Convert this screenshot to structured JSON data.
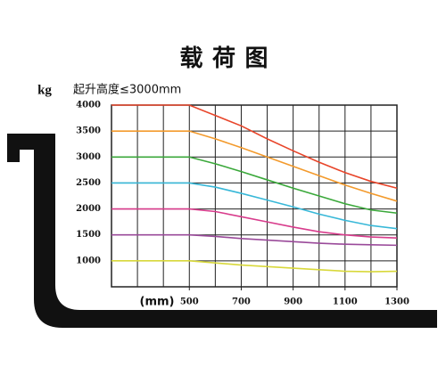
{
  "chart_data": {
    "type": "line",
    "title": "载 荷 图",
    "subtitle": "起升高度≤3000mm",
    "y_label": "kg",
    "x_label": "(mm)",
    "x": [
      200,
      500,
      600,
      700,
      800,
      900,
      1000,
      1100,
      1200,
      1300
    ],
    "series": [
      {
        "color": "#e8452a",
        "values": [
          4000,
          4000,
          3800,
          3600,
          3350,
          3120,
          2900,
          2700,
          2530,
          2400
        ]
      },
      {
        "color": "#f39a2c",
        "values": [
          3500,
          3500,
          3350,
          3180,
          3000,
          2820,
          2640,
          2460,
          2300,
          2150
        ]
      },
      {
        "color": "#3aa83a",
        "values": [
          3000,
          3000,
          2870,
          2720,
          2560,
          2400,
          2250,
          2100,
          1980,
          1920
        ]
      },
      {
        "color": "#38b8d8",
        "values": [
          2500,
          2500,
          2420,
          2300,
          2170,
          2040,
          1900,
          1780,
          1680,
          1620
        ]
      },
      {
        "color": "#d83c8c",
        "values": [
          2000,
          2000,
          1950,
          1850,
          1750,
          1650,
          1560,
          1500,
          1460,
          1440
        ]
      },
      {
        "color": "#9a4a9a",
        "values": [
          1500,
          1500,
          1470,
          1430,
          1400,
          1370,
          1340,
          1320,
          1310,
          1300
        ]
      },
      {
        "color": "#d8d83a",
        "values": [
          1000,
          1000,
          960,
          920,
          890,
          860,
          830,
          800,
          790,
          800
        ]
      }
    ],
    "xlim": [
      200,
      1300
    ],
    "xticks": [
      500,
      700,
      900,
      1100,
      1300
    ],
    "ylim": [
      500,
      4000
    ],
    "yticks": [
      1000,
      1500,
      2000,
      2500,
      3000,
      3500,
      4000
    ],
    "grid": true
  }
}
